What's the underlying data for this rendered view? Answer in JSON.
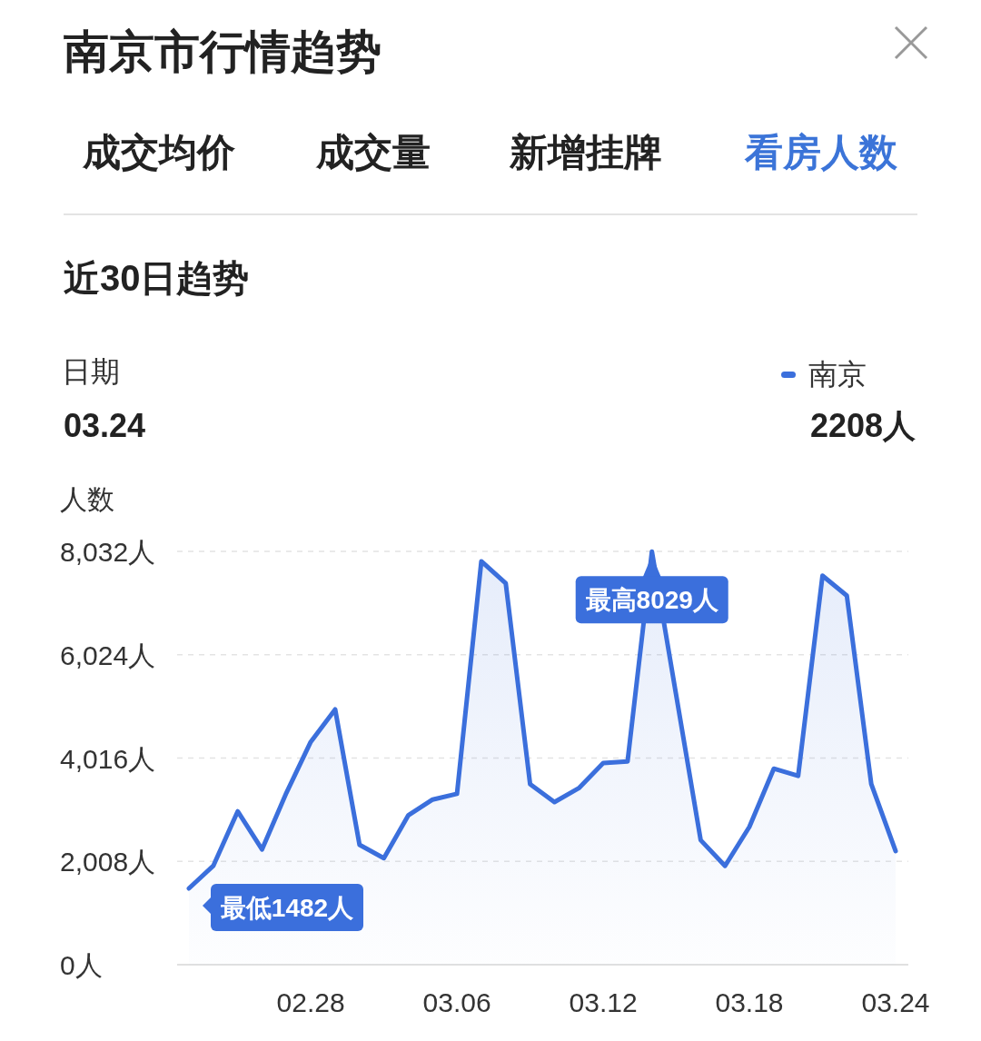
{
  "chart_data": {
    "type": "area",
    "title": "南京市行情趋势",
    "subtitle": "近30日趋势",
    "ylabel": "人数",
    "categories": [
      null,
      null,
      null,
      null,
      null,
      "02.28",
      null,
      null,
      null,
      null,
      null,
      "03.06",
      null,
      null,
      null,
      null,
      null,
      "03.12",
      null,
      null,
      null,
      null,
      null,
      "03.18",
      null,
      null,
      null,
      null,
      null,
      "03.24"
    ],
    "series": [
      {
        "name": "南京",
        "color": "#3b6fdc",
        "values": [
          1482,
          1920,
          2980,
          2240,
          3340,
          4330,
          4960,
          2330,
          2070,
          2900,
          3210,
          3320,
          7840,
          7410,
          3510,
          3160,
          3430,
          3920,
          3950,
          8029,
          null,
          2420,
          1920,
          2680,
          3810,
          3670,
          7560,
          7170,
          3510,
          2208
        ]
      }
    ],
    "ylim": [
      0,
      8032
    ],
    "yticks": [
      {
        "value": 0,
        "label": "0人"
      },
      {
        "value": 2008,
        "label": "2,008人"
      },
      {
        "value": 4016,
        "label": "4,016人"
      },
      {
        "value": 6024,
        "label": "6,024人"
      },
      {
        "value": 8032,
        "label": "8,032人"
      }
    ],
    "grid": "y",
    "legend": "top right",
    "line_style": "solid",
    "marker": "none",
    "annotations": [
      "成交均价",
      "成交量",
      "新增挂牌",
      "看房人数",
      "日期",
      "03.24",
      "2208人",
      "最低1482人",
      "最高8029人"
    ]
  }
}
